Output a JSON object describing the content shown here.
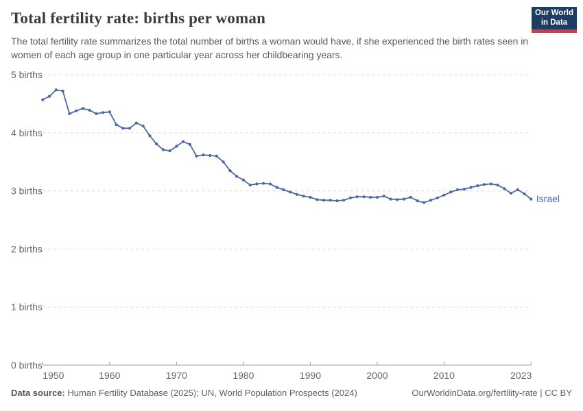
{
  "header": {
    "title": "Total fertility rate: births per woman",
    "subtitle": "The total fertility rate summarizes the total number of births a woman would have, if she experienced the birth rates seen in women of each age group in one particular year across her childbearing years.",
    "logo": {
      "line1": "Our World",
      "line2": "in Data",
      "bg_color": "#1d3d63",
      "stripe_color": "#d13b4b"
    }
  },
  "chart_data": {
    "type": "line",
    "title": "Total fertility rate: births per woman",
    "xlabel": "",
    "ylabel": "",
    "xlim": [
      1950,
      2023
    ],
    "ylim": [
      0,
      5
    ],
    "grid": "horizontal-dashed",
    "legend": "end-of-line-label",
    "x_ticks": [
      1950,
      1960,
      1970,
      1980,
      1990,
      2000,
      2010,
      2023
    ],
    "y_ticks": [
      0,
      1,
      2,
      3,
      4,
      5
    ],
    "y_tick_labels": [
      "0 births",
      "1 births",
      "2 births",
      "3 births",
      "4 births",
      "5 births"
    ],
    "series": [
      {
        "name": "Israel",
        "color": "#4a69a2",
        "years": [
          1950,
          1951,
          1952,
          1953,
          1954,
          1955,
          1956,
          1957,
          1958,
          1959,
          1960,
          1961,
          1962,
          1963,
          1964,
          1965,
          1966,
          1967,
          1968,
          1969,
          1970,
          1971,
          1972,
          1973,
          1974,
          1975,
          1976,
          1977,
          1978,
          1979,
          1980,
          1981,
          1982,
          1983,
          1984,
          1985,
          1986,
          1987,
          1988,
          1989,
          1990,
          1991,
          1992,
          1993,
          1994,
          1995,
          1996,
          1997,
          1998,
          1999,
          2000,
          2001,
          2002,
          2003,
          2004,
          2005,
          2006,
          2007,
          2008,
          2009,
          2010,
          2011,
          2012,
          2013,
          2014,
          2015,
          2016,
          2017,
          2018,
          2019,
          2020,
          2021,
          2022,
          2023
        ],
        "values": [
          4.57,
          4.63,
          4.74,
          4.72,
          4.33,
          4.38,
          4.42,
          4.39,
          4.33,
          4.35,
          4.36,
          4.14,
          4.08,
          4.08,
          4.17,
          4.12,
          3.95,
          3.81,
          3.71,
          3.69,
          3.77,
          3.85,
          3.8,
          3.6,
          3.62,
          3.61,
          3.6,
          3.5,
          3.35,
          3.25,
          3.19,
          3.1,
          3.12,
          3.13,
          3.12,
          3.06,
          3.02,
          2.98,
          2.94,
          2.91,
          2.89,
          2.85,
          2.84,
          2.84,
          2.83,
          2.84,
          2.88,
          2.9,
          2.9,
          2.89,
          2.89,
          2.91,
          2.86,
          2.85,
          2.86,
          2.89,
          2.83,
          2.8,
          2.84,
          2.88,
          2.93,
          2.98,
          3.02,
          3.03,
          3.06,
          3.09,
          3.11,
          3.12,
          3.1,
          3.04,
          2.96,
          3.02,
          2.95,
          2.86
        ]
      }
    ]
  },
  "colors": {
    "line": "#4a69a2",
    "grid": "#d8d8d8",
    "axis": "#9e9e9e",
    "tick_text": "#666666"
  },
  "footer": {
    "datasource_label": "Data source:",
    "datasource_text": " Human Fertility Database (2025); UN, World Population Prospects (2024)",
    "link_text": "OurWorldinData.org/fertility-rate | CC BY"
  }
}
